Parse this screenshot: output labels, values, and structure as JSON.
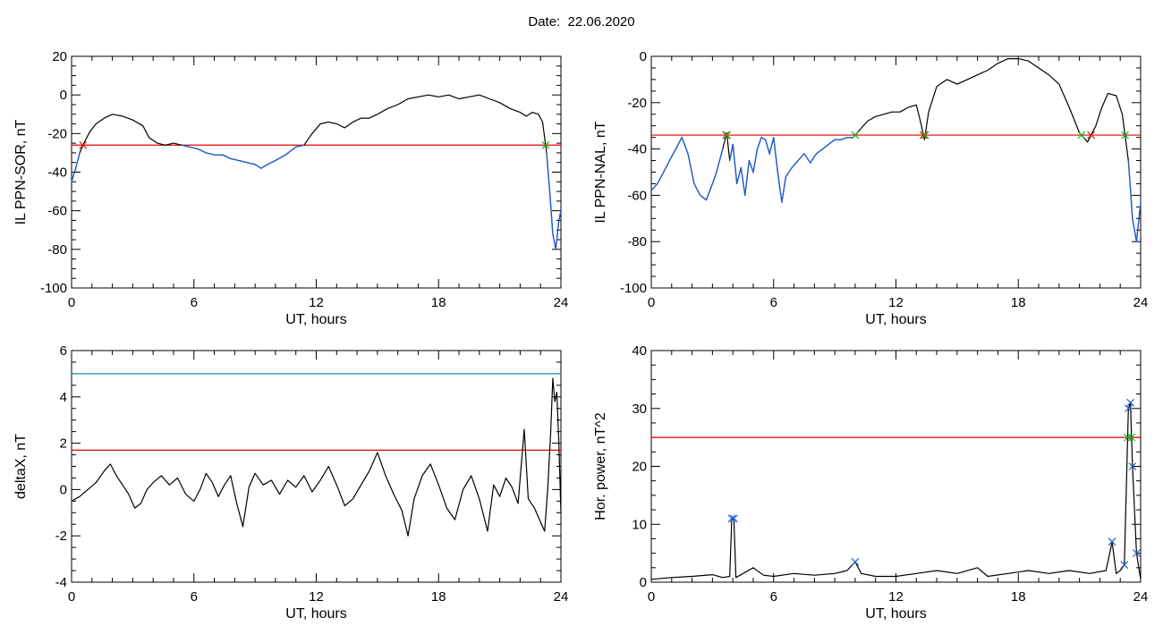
{
  "figure": {
    "title_prefix": "Date:  ",
    "title_date": "22.06.2020"
  },
  "colors": {
    "trace": "#000000",
    "blue_trace": "#1f5fd0",
    "threshold_red": "#e00000",
    "threshold_blue": "#1c8ab0",
    "marker_red": "#e02020",
    "marker_green": "#20b020",
    "marker_blue": "#2060d0",
    "marker_magenta": "#c02080"
  },
  "chart_data": [
    {
      "id": "il-sor",
      "type": "line",
      "ylabel": "IL PPN-SOR, nT",
      "xlabel": "UT, hours",
      "xlim": [
        0,
        24
      ],
      "ylim": [
        -100,
        20
      ],
      "xticks": [
        0,
        6,
        12,
        18,
        24
      ],
      "yticks": [
        -100,
        -80,
        -60,
        -40,
        -20,
        0,
        20
      ],
      "threshold": {
        "value": -26,
        "color": "red"
      },
      "series": [
        {
          "values": [
            [
              0,
              -45
            ],
            [
              0.2,
              -38
            ],
            [
              0.4,
              -30
            ],
            [
              0.6,
              -25
            ],
            [
              0.9,
              -19
            ],
            [
              1.2,
              -15
            ],
            [
              1.6,
              -12
            ],
            [
              2.0,
              -10
            ],
            [
              2.5,
              -11
            ],
            [
              3.0,
              -13
            ],
            [
              3.5,
              -16
            ],
            [
              3.8,
              -22
            ],
            [
              4.2,
              -25
            ],
            [
              4.6,
              -26
            ],
            [
              5.0,
              -25
            ],
            [
              5.4,
              -26
            ],
            [
              5.8,
              -27
            ],
            [
              6.2,
              -28
            ],
            [
              6.6,
              -30
            ],
            [
              7.0,
              -31
            ],
            [
              7.4,
              -31
            ],
            [
              7.8,
              -33
            ],
            [
              8.2,
              -34
            ],
            [
              8.6,
              -35
            ],
            [
              9.0,
              -36
            ],
            [
              9.3,
              -38
            ],
            [
              9.6,
              -36
            ],
            [
              10.0,
              -34
            ],
            [
              10.5,
              -31
            ],
            [
              11.0,
              -27
            ],
            [
              11.4,
              -26
            ],
            [
              11.8,
              -20
            ],
            [
              12.2,
              -15
            ],
            [
              12.6,
              -14
            ],
            [
              13.0,
              -15
            ],
            [
              13.4,
              -17
            ],
            [
              13.8,
              -14
            ],
            [
              14.2,
              -12
            ],
            [
              14.6,
              -12
            ],
            [
              15.0,
              -10
            ],
            [
              15.5,
              -7
            ],
            [
              16.0,
              -5
            ],
            [
              16.5,
              -2
            ],
            [
              17.0,
              -1
            ],
            [
              17.5,
              0
            ],
            [
              18.0,
              -1
            ],
            [
              18.5,
              0
            ],
            [
              19.0,
              -2
            ],
            [
              19.5,
              -1
            ],
            [
              20.0,
              0
            ],
            [
              20.5,
              -2
            ],
            [
              21.0,
              -4
            ],
            [
              21.5,
              -7
            ],
            [
              22.0,
              -9
            ],
            [
              22.3,
              -11
            ],
            [
              22.6,
              -9
            ],
            [
              22.9,
              -10
            ],
            [
              23.1,
              -14
            ],
            [
              23.3,
              -30
            ],
            [
              23.45,
              -50
            ],
            [
              23.6,
              -72
            ],
            [
              23.75,
              -80
            ],
            [
              23.9,
              -65
            ],
            [
              24.0,
              -60
            ]
          ]
        }
      ]
    },
    {
      "id": "il-nal",
      "type": "line",
      "ylabel": "IL PPN-NAL, nT",
      "xlabel": "UT, hours",
      "xlim": [
        0,
        24
      ],
      "ylim": [
        -100,
        0
      ],
      "xticks": [
        0,
        6,
        12,
        18,
        24
      ],
      "yticks": [
        -100,
        -80,
        -60,
        -40,
        -20,
        0
      ],
      "threshold": {
        "value": -34,
        "color": "red"
      },
      "series": [
        {
          "values": [
            [
              0,
              -58
            ],
            [
              0.3,
              -55
            ],
            [
              0.6,
              -50
            ],
            [
              0.9,
              -45
            ],
            [
              1.2,
              -40
            ],
            [
              1.5,
              -35
            ],
            [
              1.8,
              -42
            ],
            [
              2.1,
              -55
            ],
            [
              2.4,
              -60
            ],
            [
              2.7,
              -62
            ],
            [
              3.0,
              -55
            ],
            [
              3.2,
              -50
            ],
            [
              3.5,
              -40
            ],
            [
              3.7,
              -33
            ],
            [
              3.85,
              -45
            ],
            [
              4.0,
              -38
            ],
            [
              4.2,
              -55
            ],
            [
              4.4,
              -48
            ],
            [
              4.6,
              -60
            ],
            [
              4.8,
              -45
            ],
            [
              5.0,
              -50
            ],
            [
              5.2,
              -40
            ],
            [
              5.4,
              -35
            ],
            [
              5.6,
              -36
            ],
            [
              5.8,
              -42
            ],
            [
              6.0,
              -35
            ],
            [
              6.2,
              -50
            ],
            [
              6.4,
              -63
            ],
            [
              6.6,
              -52
            ],
            [
              6.9,
              -48
            ],
            [
              7.2,
              -45
            ],
            [
              7.5,
              -42
            ],
            [
              7.8,
              -46
            ],
            [
              8.1,
              -42
            ],
            [
              8.4,
              -40
            ],
            [
              8.7,
              -38
            ],
            [
              9.0,
              -36
            ],
            [
              9.3,
              -36
            ],
            [
              9.6,
              -35
            ],
            [
              9.9,
              -35
            ],
            [
              10.2,
              -32
            ],
            [
              10.6,
              -28
            ],
            [
              11.0,
              -26
            ],
            [
              11.4,
              -25
            ],
            [
              11.8,
              -24
            ],
            [
              12.2,
              -24
            ],
            [
              12.6,
              -22
            ],
            [
              13.0,
              -21
            ],
            [
              13.2,
              -28
            ],
            [
              13.4,
              -36
            ],
            [
              13.6,
              -24
            ],
            [
              14.0,
              -13
            ],
            [
              14.5,
              -10
            ],
            [
              15.0,
              -12
            ],
            [
              15.5,
              -10
            ],
            [
              16.0,
              -8
            ],
            [
              16.5,
              -6
            ],
            [
              17.0,
              -3
            ],
            [
              17.5,
              -1
            ],
            [
              18.0,
              -1
            ],
            [
              18.5,
              -2
            ],
            [
              19.0,
              -5
            ],
            [
              19.5,
              -8
            ],
            [
              20.0,
              -12
            ],
            [
              20.5,
              -22
            ],
            [
              21.0,
              -33
            ],
            [
              21.4,
              -37
            ],
            [
              21.8,
              -30
            ],
            [
              22.1,
              -22
            ],
            [
              22.4,
              -16
            ],
            [
              22.8,
              -17
            ],
            [
              23.1,
              -25
            ],
            [
              23.4,
              -45
            ],
            [
              23.6,
              -70
            ],
            [
              23.8,
              -80
            ],
            [
              24.0,
              -63
            ]
          ]
        }
      ]
    },
    {
      "id": "deltax",
      "type": "line",
      "ylabel": "deltaX, nT",
      "xlabel": "UT, hours",
      "xlim": [
        0,
        24
      ],
      "ylim": [
        -4,
        6
      ],
      "xticks": [
        0,
        6,
        12,
        18,
        24
      ],
      "yticks": [
        -4,
        -2,
        0,
        2,
        4,
        6
      ],
      "thresholds": [
        {
          "value": 5,
          "color": "blue"
        },
        {
          "value": 1.7,
          "color": "red"
        }
      ],
      "series": [
        {
          "values": [
            [
              0,
              -0.5
            ],
            [
              0.4,
              -0.3
            ],
            [
              0.8,
              0.0
            ],
            [
              1.2,
              0.3
            ],
            [
              1.6,
              0.8
            ],
            [
              1.9,
              1.1
            ],
            [
              2.2,
              0.6
            ],
            [
              2.5,
              0.2
            ],
            [
              2.8,
              -0.2
            ],
            [
              3.1,
              -0.8
            ],
            [
              3.4,
              -0.6
            ],
            [
              3.7,
              0.0
            ],
            [
              4.0,
              0.3
            ],
            [
              4.4,
              0.6
            ],
            [
              4.8,
              0.2
            ],
            [
              5.2,
              0.5
            ],
            [
              5.6,
              -0.2
            ],
            [
              6.0,
              -0.5
            ],
            [
              6.3,
              0.0
            ],
            [
              6.6,
              0.7
            ],
            [
              6.9,
              0.3
            ],
            [
              7.2,
              -0.3
            ],
            [
              7.5,
              0.2
            ],
            [
              7.8,
              0.6
            ],
            [
              8.1,
              -0.6
            ],
            [
              8.4,
              -1.6
            ],
            [
              8.7,
              0.1
            ],
            [
              9.0,
              0.7
            ],
            [
              9.4,
              0.2
            ],
            [
              9.8,
              0.4
            ],
            [
              10.2,
              -0.2
            ],
            [
              10.6,
              0.4
            ],
            [
              11.0,
              0.1
            ],
            [
              11.4,
              0.6
            ],
            [
              11.8,
              -0.1
            ],
            [
              12.2,
              0.4
            ],
            [
              12.6,
              1.0
            ],
            [
              13.0,
              0.2
            ],
            [
              13.4,
              -0.7
            ],
            [
              13.8,
              -0.4
            ],
            [
              14.2,
              0.2
            ],
            [
              14.6,
              0.8
            ],
            [
              15.0,
              1.6
            ],
            [
              15.4,
              0.6
            ],
            [
              15.8,
              -0.2
            ],
            [
              16.2,
              -0.9
            ],
            [
              16.5,
              -2.0
            ],
            [
              16.8,
              -0.4
            ],
            [
              17.2,
              0.6
            ],
            [
              17.6,
              1.1
            ],
            [
              18.0,
              0.2
            ],
            [
              18.4,
              -0.8
            ],
            [
              18.8,
              -1.3
            ],
            [
              19.2,
              0.0
            ],
            [
              19.6,
              0.6
            ],
            [
              20.0,
              -0.4
            ],
            [
              20.4,
              -1.8
            ],
            [
              20.7,
              0.2
            ],
            [
              21.0,
              -0.3
            ],
            [
              21.3,
              0.5
            ],
            [
              21.6,
              0.1
            ],
            [
              21.9,
              -0.6
            ],
            [
              22.2,
              2.6
            ],
            [
              22.4,
              -0.4
            ],
            [
              22.7,
              -0.8
            ],
            [
              23.0,
              -1.4
            ],
            [
              23.2,
              -1.8
            ],
            [
              23.35,
              0.0
            ],
            [
              23.5,
              2.5
            ],
            [
              23.6,
              4.8
            ],
            [
              23.7,
              3.8
            ],
            [
              23.8,
              4.2
            ],
            [
              23.9,
              2.0
            ],
            [
              24.0,
              -1.0
            ]
          ]
        }
      ]
    },
    {
      "id": "hor-power",
      "type": "line",
      "ylabel": "Hor. power, nT^2",
      "xlabel": "UT, hours",
      "xlim": [
        0,
        24
      ],
      "ylim": [
        0,
        40
      ],
      "xticks": [
        0,
        6,
        12,
        18,
        24
      ],
      "yticks": [
        0,
        10,
        20,
        30,
        40
      ],
      "threshold": {
        "value": 25,
        "color": "red"
      },
      "series": [
        {
          "values": [
            [
              0,
              0.5
            ],
            [
              1.0,
              0.8
            ],
            [
              2.0,
              1.0
            ],
            [
              3.0,
              1.3
            ],
            [
              3.5,
              0.8
            ],
            [
              3.85,
              1.0
            ],
            [
              3.95,
              11.0
            ],
            [
              4.05,
              11.0
            ],
            [
              4.15,
              0.8
            ],
            [
              4.5,
              1.5
            ],
            [
              5.0,
              2.5
            ],
            [
              5.5,
              1.2
            ],
            [
              6.0,
              1.0
            ],
            [
              7.0,
              1.5
            ],
            [
              8.0,
              1.2
            ],
            [
              9.0,
              1.5
            ],
            [
              9.6,
              2.0
            ],
            [
              10.0,
              3.5
            ],
            [
              10.3,
              1.5
            ],
            [
              11.0,
              1.0
            ],
            [
              12.0,
              1.0
            ],
            [
              13.0,
              1.5
            ],
            [
              14.0,
              2.0
            ],
            [
              15.0,
              1.5
            ],
            [
              16.0,
              2.5
            ],
            [
              16.5,
              1.0
            ],
            [
              17.5,
              1.5
            ],
            [
              18.5,
              2.0
            ],
            [
              19.5,
              1.5
            ],
            [
              20.5,
              2.0
            ],
            [
              21.5,
              1.5
            ],
            [
              22.3,
              2.0
            ],
            [
              22.6,
              7.0
            ],
            [
              22.8,
              1.5
            ],
            [
              23.0,
              2.0
            ],
            [
              23.2,
              3.0
            ],
            [
              23.4,
              30.0
            ],
            [
              23.5,
              31.0
            ],
            [
              23.6,
              20.0
            ],
            [
              23.8,
              5.0
            ],
            [
              24.0,
              0.5
            ]
          ]
        }
      ]
    }
  ]
}
